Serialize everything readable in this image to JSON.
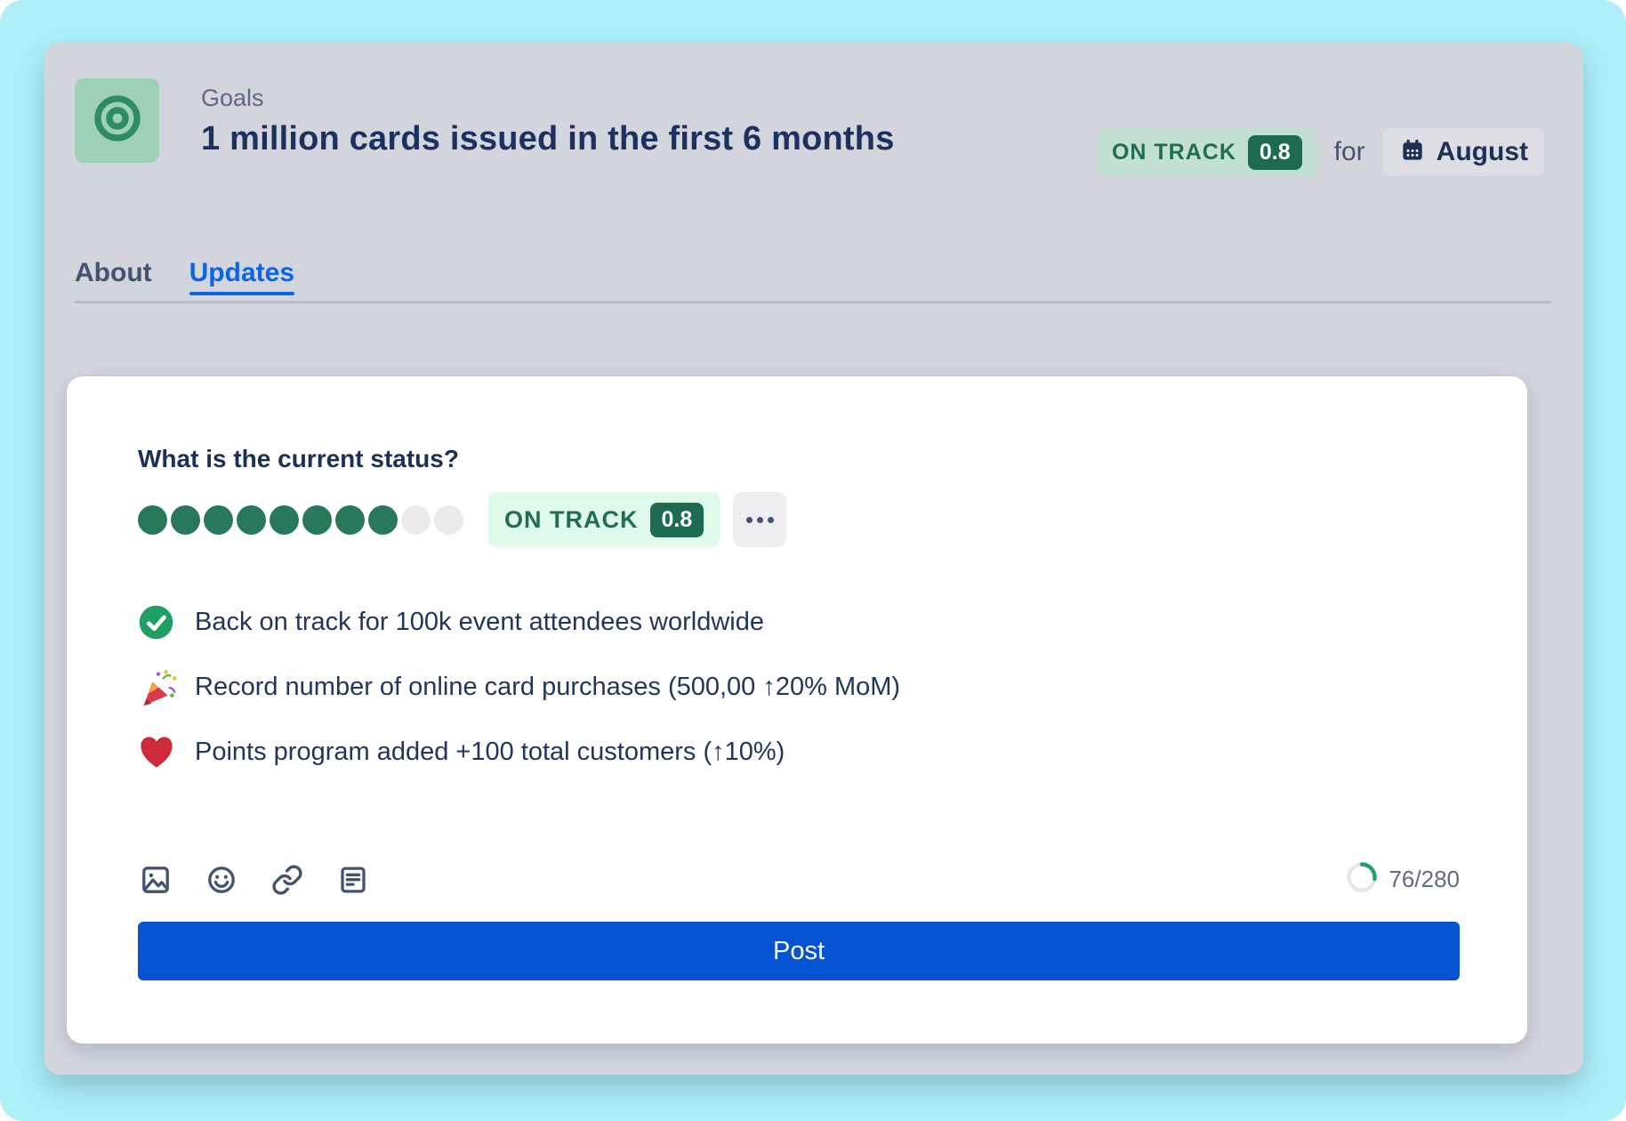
{
  "header": {
    "app_label": "Goals",
    "title": "1 million cards issued in the first 6 months",
    "status_badge": {
      "label": "ON TRACK",
      "score": "0.8"
    },
    "for_label": "for",
    "period_button": {
      "label": "August",
      "icon": "calendar-icon"
    },
    "goal_icon": "target-icon"
  },
  "tabs": [
    {
      "label": "About",
      "active": false
    },
    {
      "label": "Updates",
      "active": true
    }
  ],
  "composer": {
    "question": "What is the current status?",
    "progress_dots": {
      "filled": 8,
      "total": 10
    },
    "status_badge": {
      "label": "ON TRACK",
      "score": "0.8"
    },
    "more_icon": "ellipsis-icon",
    "updates": [
      {
        "icon": "check-circle-icon",
        "text": "Back on track for 100k event attendees worldwide"
      },
      {
        "icon": "party-popper-icon",
        "text": "Record number of online card purchases (500,00 ↑20% MoM)"
      },
      {
        "icon": "heart-icon",
        "text": "Points program added +100 total customers (↑10%)"
      }
    ],
    "toolbar_icons": [
      "image-icon",
      "emoji-icon",
      "link-icon",
      "note-icon"
    ],
    "char_counter": {
      "text": "76/280",
      "used": 76,
      "limit": 280
    },
    "post_label": "Post"
  },
  "colors": {
    "page_bg": "#ADF0F8",
    "panel_bg": "#D2D5DC",
    "accent_blue": "#0C66E4",
    "post_blue": "#0553D1",
    "badge_green_text": "#216E4E",
    "badge_green_bold": "#1D6B50",
    "badge_mint_bg": "#DEFAEB",
    "badge_header_bg": "#C3E1D2",
    "dot_green": "#27795A",
    "counter_green": "#22A06B",
    "title_navy": "#1D3160"
  }
}
